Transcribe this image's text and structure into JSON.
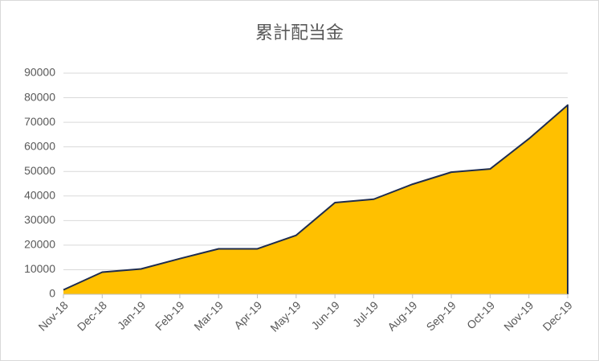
{
  "chart_data": {
    "type": "area",
    "title": "累計配当金",
    "categories": [
      "Nov-18",
      "Dec-18",
      "Jan-19",
      "Feb-19",
      "Mar-19",
      "Apr-19",
      "May-19",
      "Jun-19",
      "Jul-19",
      "Aug-19",
      "Sep-19",
      "Oct-19",
      "Nov-19",
      "Dec-19"
    ],
    "values": [
      1800,
      9000,
      10300,
      14500,
      18500,
      18500,
      24000,
      37300,
      38700,
      44800,
      49700,
      51000,
      63300,
      77000
    ],
    "color": "#ffc000",
    "line_color": "#1f2d4f",
    "ylim": [
      0,
      90000
    ],
    "yticks": [
      0,
      10000,
      20000,
      30000,
      40000,
      50000,
      60000,
      70000,
      80000,
      90000
    ],
    "grid": true
  }
}
